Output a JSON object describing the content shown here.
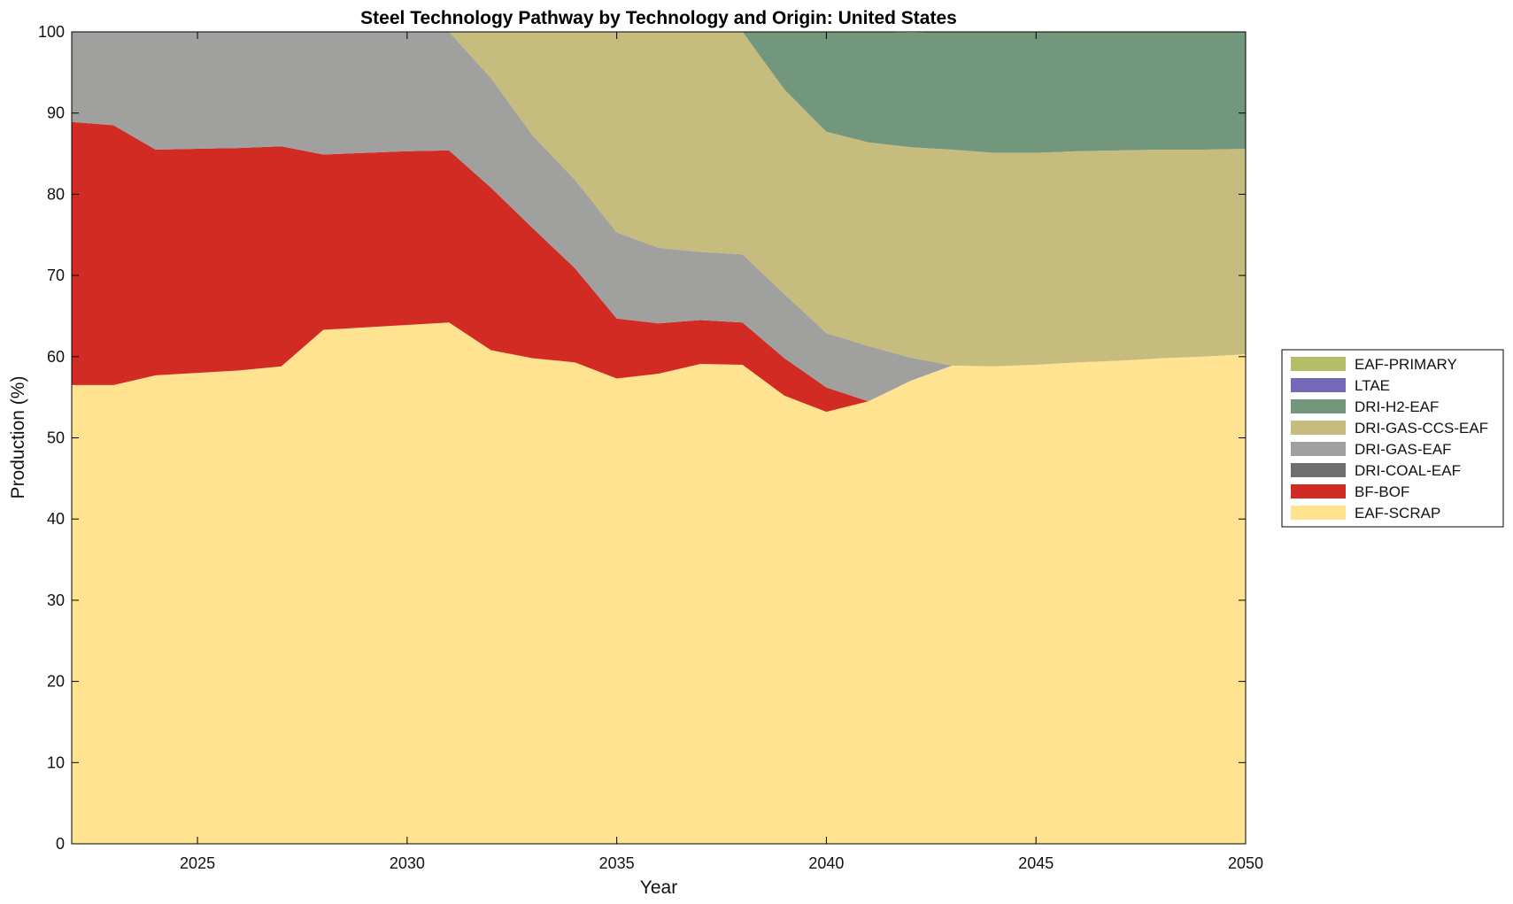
{
  "chart_data": {
    "type": "area",
    "stacked": true,
    "title": "Steel Technology Pathway by Technology and Origin: United States",
    "xlabel": "Year",
    "ylabel": "Production (%)",
    "xlim": [
      2022,
      2050
    ],
    "ylim": [
      0,
      100
    ],
    "xticks": [
      2025,
      2030,
      2035,
      2040,
      2045,
      2050
    ],
    "yticks": [
      0,
      10,
      20,
      30,
      40,
      50,
      60,
      70,
      80,
      90,
      100
    ],
    "grid": false,
    "legend_position": "right",
    "x": [
      2022,
      2023,
      2024,
      2025,
      2026,
      2027,
      2028,
      2029,
      2030,
      2031,
      2032,
      2033,
      2034,
      2035,
      2036,
      2037,
      2038,
      2039,
      2040,
      2041,
      2042,
      2043,
      2044,
      2045,
      2046,
      2047,
      2048,
      2049,
      2050
    ],
    "series": [
      {
        "name": "EAF-SCRAP",
        "color": "#FFE391",
        "values": [
          56.5,
          56.5,
          57.7,
          58.0,
          58.3,
          58.8,
          63.3,
          63.6,
          63.9,
          64.2,
          60.8,
          59.8,
          59.3,
          57.3,
          57.9,
          59.1,
          59.0,
          55.2,
          53.2,
          54.5,
          57.0,
          58.9,
          58.8,
          59.0,
          59.3,
          59.5,
          59.8,
          60.0,
          60.3
        ]
      },
      {
        "name": "BF-BOF",
        "color": "#D22B24",
        "values": [
          32.4,
          32.0,
          27.8,
          27.6,
          27.4,
          27.1,
          21.6,
          21.5,
          21.4,
          21.2,
          20.0,
          16.0,
          11.6,
          7.4,
          6.2,
          5.4,
          5.2,
          4.6,
          3.0,
          0.0,
          0.0,
          0.0,
          0.0,
          0.0,
          0.0,
          0.0,
          0.0,
          0.0,
          0.0
        ]
      },
      {
        "name": "DRI-COAL-EAF",
        "color": "#6E6E6E",
        "values": [
          0,
          0,
          0,
          0,
          0,
          0,
          0,
          0,
          0,
          0,
          0,
          0,
          0,
          0,
          0,
          0,
          0,
          0,
          0,
          0,
          0,
          0,
          0,
          0,
          0,
          0,
          0,
          0,
          0
        ]
      },
      {
        "name": "DRI-GAS-EAF",
        "color": "#A0A09E",
        "values": [
          11.1,
          11.5,
          14.5,
          14.4,
          14.3,
          14.1,
          15.1,
          14.9,
          14.7,
          14.6,
          13.5,
          11.4,
          10.9,
          10.6,
          9.3,
          8.4,
          8.4,
          7.9,
          6.7,
          6.8,
          2.9,
          0.0,
          0.0,
          0.0,
          0.0,
          0.0,
          0.0,
          0.0,
          0.0
        ]
      },
      {
        "name": "DRI-GAS-CCS-EAF",
        "color": "#C6BC7E",
        "values": [
          0.0,
          0.0,
          0.0,
          0.0,
          0.0,
          0.0,
          0.0,
          0.0,
          0.0,
          0.0,
          5.7,
          12.8,
          18.2,
          24.7,
          26.6,
          27.1,
          27.4,
          25.2,
          24.8,
          25.1,
          25.9,
          26.6,
          26.3,
          26.1,
          26.0,
          25.9,
          25.7,
          25.5,
          25.3
        ]
      },
      {
        "name": "DRI-H2-EAF",
        "color": "#73977C",
        "values": [
          0.0,
          0.0,
          0.0,
          0.0,
          0.0,
          0.0,
          0.0,
          0.0,
          0.0,
          0.0,
          0.0,
          0.0,
          0.0,
          0.0,
          0.0,
          0.0,
          0.0,
          7.1,
          12.3,
          13.6,
          14.1,
          14.5,
          14.9,
          14.9,
          14.7,
          14.6,
          14.5,
          14.5,
          14.4
        ]
      },
      {
        "name": "LTAE",
        "color": "#7369B8",
        "values": [
          0,
          0,
          0,
          0,
          0,
          0,
          0,
          0,
          0,
          0,
          0,
          0,
          0,
          0,
          0,
          0,
          0,
          0,
          0,
          0,
          0,
          0,
          0,
          0,
          0,
          0,
          0,
          0,
          0
        ]
      },
      {
        "name": "EAF-PRIMARY",
        "color": "#B5BE67",
        "values": [
          0,
          0,
          0,
          0,
          0,
          0,
          0,
          0,
          0,
          0,
          0,
          0,
          0,
          0,
          0,
          0,
          0,
          0,
          0,
          0,
          0,
          0,
          0,
          0,
          0,
          0,
          0,
          0,
          0
        ]
      }
    ],
    "legend_order": [
      "EAF-PRIMARY",
      "LTAE",
      "DRI-H2-EAF",
      "DRI-GAS-CCS-EAF",
      "DRI-GAS-EAF",
      "DRI-COAL-EAF",
      "BF-BOF",
      "EAF-SCRAP"
    ]
  }
}
